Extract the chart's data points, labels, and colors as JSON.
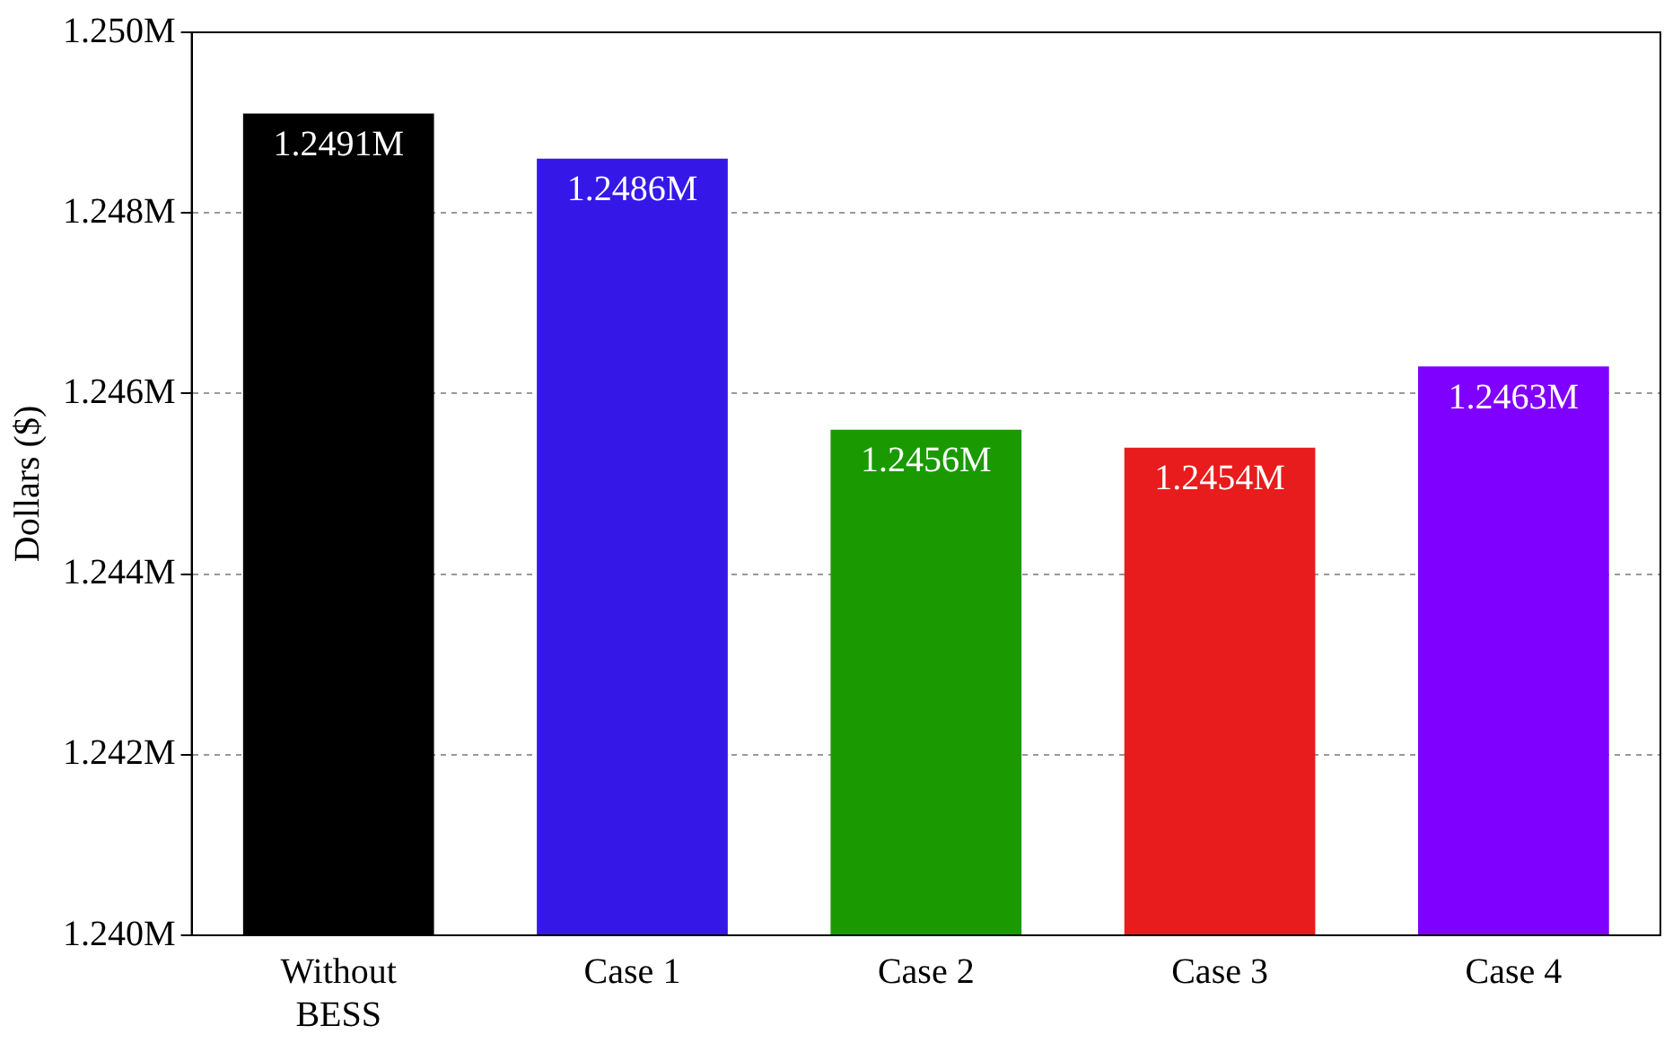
{
  "chart_data": {
    "type": "bar",
    "ylabel": "Dollars ($)",
    "categories": [
      "Without BESS",
      "Case 1",
      "Case 2",
      "Case 3",
      "Case 4"
    ],
    "values": [
      1249100,
      1248600,
      1245600,
      1245400,
      1246300
    ],
    "value_labels": [
      "1.2491M",
      "1.2486M",
      "1.2456M",
      "1.2454M",
      "1.2463M"
    ],
    "colors": [
      "#000000",
      "#3518e8",
      "#1a9a00",
      "#e81c1c",
      "#8000ff"
    ],
    "ylim": [
      1240000,
      1250000
    ],
    "yticks": [
      {
        "value": 1240000,
        "label": "1.240M"
      },
      {
        "value": 1242000,
        "label": "1.242M"
      },
      {
        "value": 1244000,
        "label": "1.244M"
      },
      {
        "value": 1246000,
        "label": "1.246M"
      },
      {
        "value": 1248000,
        "label": "1.248M"
      },
      {
        "value": 1250000,
        "label": "1.250M"
      }
    ],
    "grid": "y",
    "legend": false
  }
}
